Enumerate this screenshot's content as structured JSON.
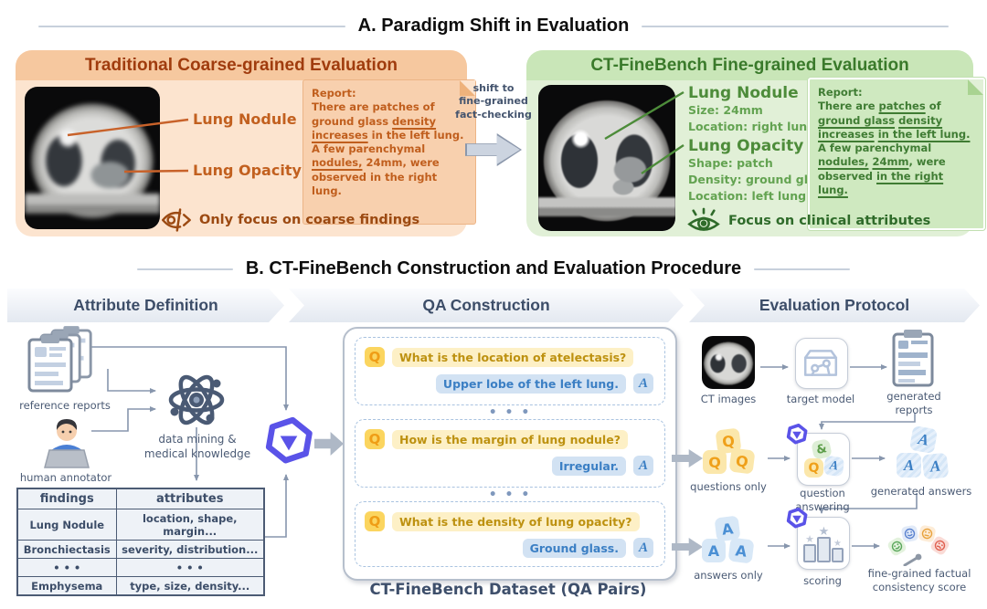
{
  "section_a": {
    "title": "A. Paradigm Shift in Evaluation",
    "left": {
      "title": "Traditional Coarse-grained Evaluation",
      "label_nodule": "Lung Nodule",
      "label_opacity": "Lung Opacity",
      "report_heading": "Report:",
      "report_segments": [
        {
          "t": "There are patches of ground glass "
        },
        {
          "t": "density increases",
          "u": true
        },
        {
          "t": " in the left lung. A few parenchymal "
        },
        {
          "t": "nodules,",
          "u": true
        },
        {
          "t": " 24mm, were observed in the right lung."
        }
      ],
      "footer": "Only focus on coarse findings"
    },
    "shift_label": "shift to\nfine-grained\nfact-checking",
    "right": {
      "title": "CT-FineBench Fine-grained Evaluation",
      "nodule_label": "Lung Nodule",
      "nodule_attrs": "Size: 24mm\nLocation: right lung",
      "opacity_label": "Lung Opacity",
      "opacity_attrs": "Shape: patch\nDensity: ground glass\nLocation: left lung",
      "report_heading": "Report:",
      "report_segments": [
        {
          "t": "There are "
        },
        {
          "t": "patches",
          "u": true
        },
        {
          "t": " of "
        },
        {
          "t": "ground glass",
          "u": true
        },
        {
          "t": " "
        },
        {
          "t": "density increases",
          "u": true
        },
        {
          "t": " "
        },
        {
          "t": "in the left lung.",
          "u": true
        },
        {
          "t": " A few parenchymal "
        },
        {
          "t": "nodules,",
          "u": true
        },
        {
          "t": " "
        },
        {
          "t": "24mm",
          "u": true
        },
        {
          "t": ", were observed "
        },
        {
          "t": "in the right lung.",
          "u": true
        }
      ],
      "footer": "Focus on clinical attributes"
    }
  },
  "section_b": {
    "title": "B. CT-FineBench Construction and Evaluation Procedure",
    "stages": [
      "Attribute Definition",
      "QA Construction",
      "Evaluation Protocol"
    ],
    "attribute_definition": {
      "reference_reports_label": "reference reports",
      "human_annotator_label": "human annotator",
      "data_mining_label": "data mining &\nmedical knowledge",
      "table": {
        "headers": [
          "findings",
          "attributes"
        ],
        "rows": [
          [
            "Lung Nodule",
            "location, shape, margin..."
          ],
          [
            "Bronchiectasis",
            "severity, distribution..."
          ],
          [
            "• • •",
            "• • •"
          ],
          [
            "Emphysema",
            "type, size, density..."
          ]
        ]
      }
    },
    "qa_construction": {
      "q_badge": "Q",
      "a_badge": "A",
      "dots": "• • •",
      "qa_pairs": [
        {
          "q": "What is the location of atelectasis?",
          "a": "Upper lobe of the left lung."
        },
        {
          "q": "How is the margin of lung nodule?",
          "a": "Irregular."
        },
        {
          "q": "What is the density of lung opacity?",
          "a": "Ground glass."
        }
      ],
      "caption": "CT-FineBench Dataset (QA Pairs)"
    },
    "evaluation_protocol": {
      "ct_images": "CT images",
      "target_model": "target model",
      "generated_reports": "generated\nreports",
      "questions_only": "questions only",
      "question_answering": "question\nanswering",
      "generated_answers": "generated answers",
      "answers_only": "answers only",
      "scoring": "scoring",
      "consistency_score": "fine-grained factual\nconsistency score",
      "amp": "&"
    }
  },
  "colors": {
    "orange_panel": "#fce4cf",
    "orange_header": "#f6c89f",
    "orange_title": "#a03c0e",
    "orange_text": "#c2601f",
    "green_panel": "#e1f0d7",
    "green_header": "#c9e6b8",
    "green_title": "#3a7a2b",
    "green_text": "#4d8c3a",
    "slate": "#3c4d68",
    "wire": "#8796ad",
    "qwen_purple": "#5a53e8",
    "q_yellow": "#fbd55f",
    "a_blue": "#3b7fc4"
  }
}
